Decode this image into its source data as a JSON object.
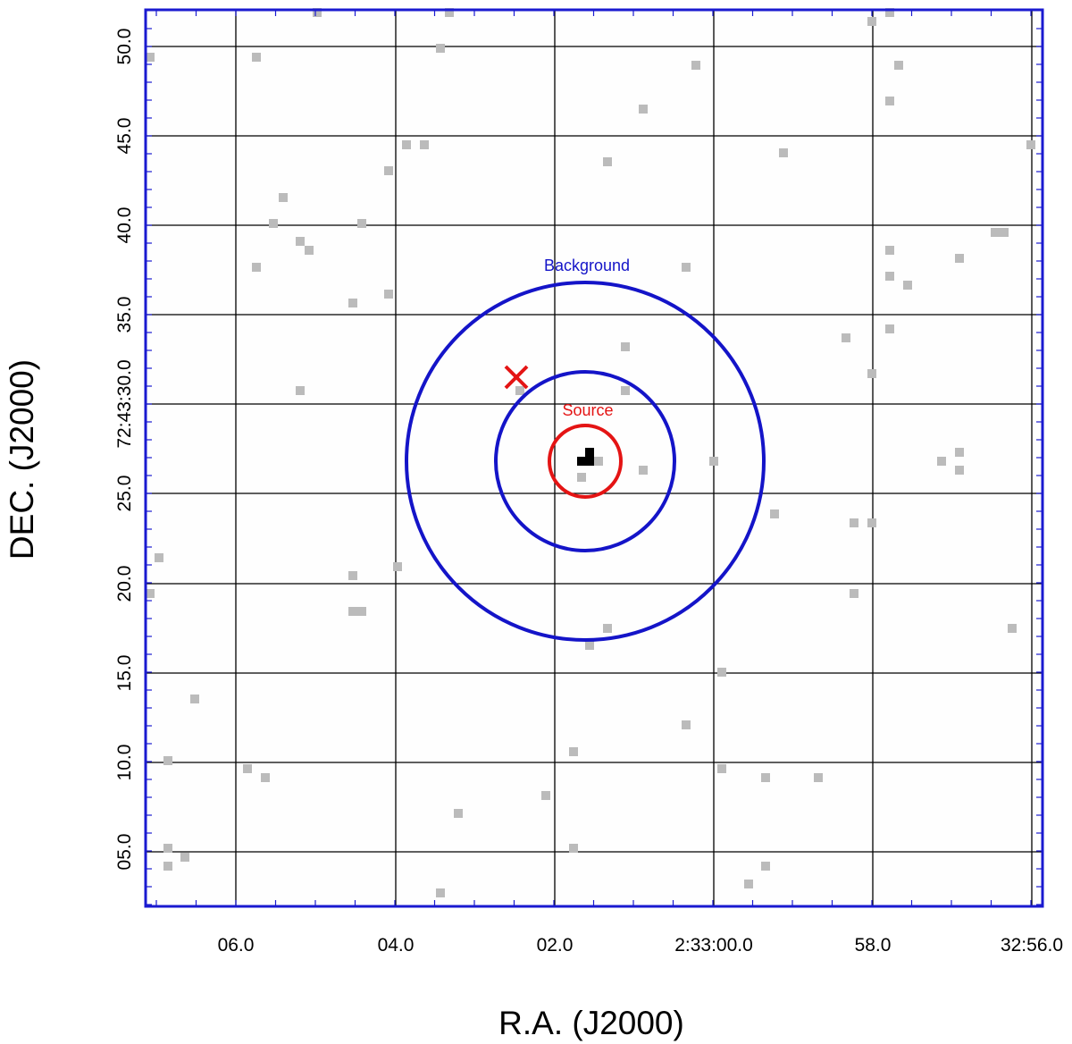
{
  "chart_data": {
    "type": "image",
    "xlabel": "R.A. (J2000)",
    "ylabel": "DEC. (J2000)",
    "x_ticks": [
      "06.0",
      "04.0",
      "02.0",
      "2:33:00.0",
      "58.0",
      "32:56.0"
    ],
    "y_ticks": [
      "05.0",
      "10.0",
      "15.0",
      "20.0",
      "25.0",
      "72:43:30.0",
      "35.0",
      "40.0",
      "45.0",
      "50.0"
    ],
    "grid": true,
    "regions": [
      {
        "name": "source",
        "label": "Source",
        "color": "#e41414",
        "shape": "circle"
      },
      {
        "name": "background",
        "label": "Background",
        "color": "#1414c8",
        "shape": "annulus"
      }
    ],
    "marker": {
      "name": "cross-marker",
      "color": "#e41414",
      "symbol": "×"
    },
    "frame_color": "#1a1ad0",
    "pixel_color": "#bbbbbb",
    "bright_pixel_color": "#000000"
  }
}
